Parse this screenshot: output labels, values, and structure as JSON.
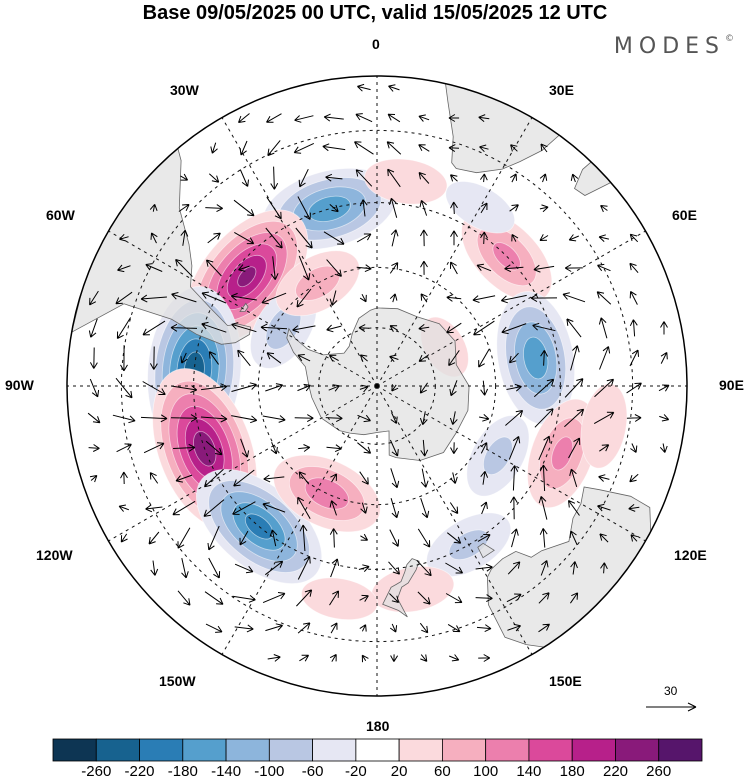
{
  "title": "Base 09/05/2025 00 UTC, valid 15/05/2025 12 UTC",
  "brand": {
    "text": "MODES",
    "mark": "©"
  },
  "longitude_labels": {
    "lon_0": "0",
    "lon_30e": "30E",
    "lon_60e": "60E",
    "lon_90e": "90E",
    "lon_120e": "120E",
    "lon_150e": "150E",
    "lon_180": "180",
    "lon_150w": "150W",
    "lon_120w": "120W",
    "lon_90w": "90W",
    "lon_60w": "60W",
    "lon_30w": "30W"
  },
  "reference_vector": {
    "value": "30"
  },
  "colorbar": {
    "ticks": [
      "-260",
      "-220",
      "-180",
      "-140",
      "-100",
      "-60",
      "-20",
      "20",
      "60",
      "100",
      "140",
      "180",
      "220",
      "260"
    ],
    "colors": [
      "#0d3553",
      "#17628f",
      "#2a7db5",
      "#559fcd",
      "#8db5dc",
      "#b9c7e3",
      "#e6e7f3",
      "#ffffff",
      "#fbdadd",
      "#f6afbf",
      "#ec7fad",
      "#db499b",
      "#b7208a",
      "#891a7a",
      "#56156b"
    ]
  },
  "map": {
    "projection": "south-polar-stereographic",
    "anomalies": [
      {
        "lon": -15,
        "lat": -45,
        "value": -170
      },
      {
        "lon": -50,
        "lat": -48,
        "value": 230
      },
      {
        "lon": -58,
        "lat": -62,
        "value": -80
      },
      {
        "lon": -85,
        "lat": -45,
        "value": -250
      },
      {
        "lon": -110,
        "lat": -45,
        "value": 250
      },
      {
        "lon": -140,
        "lat": -45,
        "value": -200
      },
      {
        "lon": -155,
        "lat": -60,
        "value": 130
      },
      {
        "lon": 45,
        "lat": -45,
        "value": 110
      },
      {
        "lon": 80,
        "lat": -50,
        "value": -170
      },
      {
        "lon": 120,
        "lat": -55,
        "value": -70
      },
      {
        "lon": 110,
        "lat": -42,
        "value": 110
      },
      {
        "lon": 150,
        "lat": -45,
        "value": -70
      },
      {
        "lon": 8,
        "lat": -40,
        "value": 50
      },
      {
        "lon": -30,
        "lat": -60,
        "value": 80
      },
      {
        "lon": 60,
        "lat": -70,
        "value": 40
      },
      {
        "lon": 170,
        "lat": -40,
        "value": 50
      },
      {
        "lon": -170,
        "lat": -38,
        "value": 40
      },
      {
        "lon": 100,
        "lat": -35,
        "value": 50
      },
      {
        "lon": 30,
        "lat": -40,
        "value": -40
      }
    ]
  }
}
